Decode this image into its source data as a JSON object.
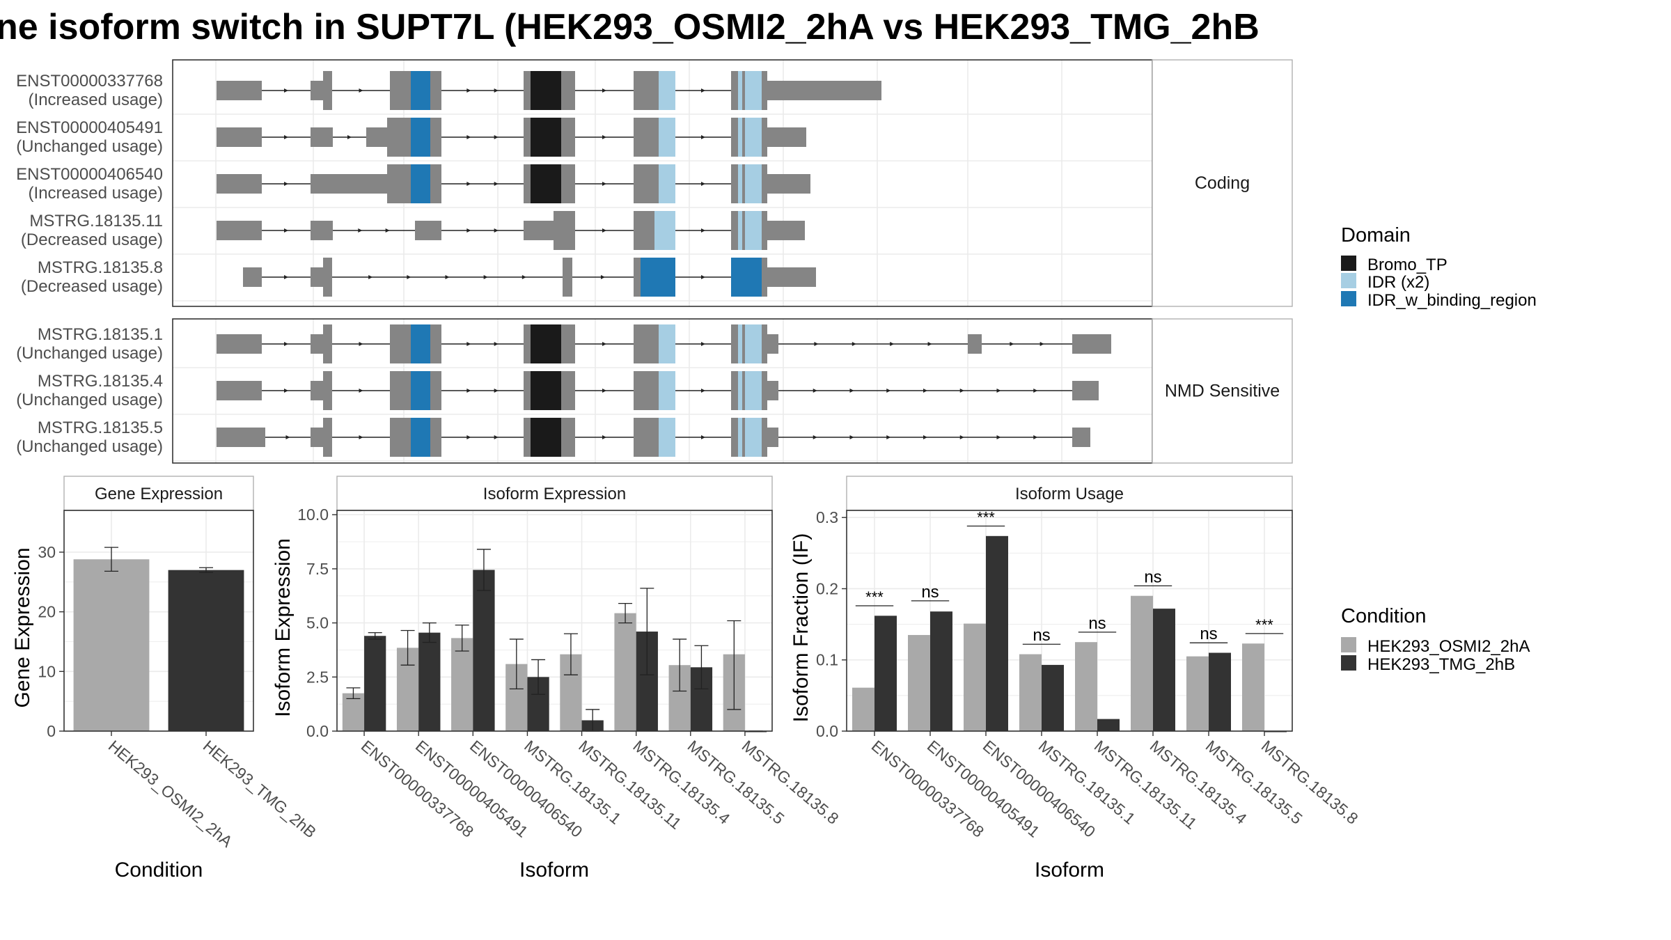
{
  "title": "ne isoform switch in SUPT7L (HEK293_OSMI2_2hA vs HEK293_TMG_2hB",
  "colors": {
    "exon": "#858585",
    "bromo": "#1a1a1a",
    "idr": "#a6cee3",
    "idr_binding": "#1f78b4",
    "cond_a": "#a9a9a9",
    "cond_b": "#333333",
    "panel_border": "#333333",
    "strip_border": "#b0b0b0",
    "grid": "#ebebeb"
  },
  "structure": {
    "facets": [
      {
        "label": "Coding",
        "isoforms": [
          {
            "id": "ENST00000337768",
            "usage": "(Increased usage)"
          },
          {
            "id": "ENST00000405491",
            "usage": "(Unchanged usage)"
          },
          {
            "id": "ENST00000406540",
            "usage": "(Increased usage)"
          },
          {
            "id": "MSTRG.18135.11",
            "usage": "(Decreased usage)"
          },
          {
            "id": "MSTRG.18135.8",
            "usage": "(Decreased usage)"
          }
        ]
      },
      {
        "label": "NMD Sensitive",
        "isoforms": [
          {
            "id": "MSTRG.18135.1",
            "usage": "(Unchanged usage)"
          },
          {
            "id": "MSTRG.18135.4",
            "usage": "(Unchanged usage)"
          },
          {
            "id": "MSTRG.18135.5",
            "usage": "(Unchanged usage)"
          }
        ]
      }
    ]
  },
  "legend_domain": {
    "title": "Domain",
    "items": [
      {
        "label": "Bromo_TP",
        "color": "#1a1a1a"
      },
      {
        "label": "IDR (x2)",
        "color": "#a6cee3"
      },
      {
        "label": "IDR_w_binding_region",
        "color": "#1f78b4"
      }
    ]
  },
  "legend_condition": {
    "title": "Condition",
    "items": [
      {
        "label": "HEK293_OSMI2_2hA",
        "color": "#a9a9a9"
      },
      {
        "label": "HEK293_TMG_2hB",
        "color": "#333333"
      }
    ]
  },
  "chart_data": [
    {
      "type": "bar",
      "title": "Gene Expression",
      "xlabel": "Condition",
      "ylabel": "Gene Expression",
      "ylim": [
        0,
        37
      ],
      "yticks": [
        0,
        10,
        20,
        30
      ],
      "categories": [
        "HEK293_OSMI2_2hA",
        "HEK293_TMG_2hB"
      ],
      "values": [
        28.8,
        27.0
      ],
      "error_low": [
        26.8,
        26.6
      ],
      "error_high": [
        30.8,
        27.4
      ]
    },
    {
      "type": "bar",
      "title": "Isoform Expression",
      "xlabel": "Isoform",
      "ylabel": "Isoform Expression",
      "ylim": [
        0,
        10.2
      ],
      "yticks": [
        "0.0",
        "2.5",
        "5.0",
        "7.5",
        "10.0"
      ],
      "categories": [
        "ENST00000337768",
        "ENST00000405491",
        "ENST00000406540",
        "MSTRG.18135.1",
        "MSTRG.18135.11",
        "MSTRG.18135.4",
        "MSTRG.18135.5",
        "MSTRG.18135.8"
      ],
      "series": [
        {
          "name": "HEK293_OSMI2_2hA",
          "values": [
            1.75,
            3.85,
            4.3,
            3.1,
            3.55,
            5.45,
            3.05,
            3.55
          ],
          "error_low": [
            1.5,
            3.05,
            3.7,
            1.95,
            2.6,
            5.0,
            1.85,
            1.0
          ],
          "error_high": [
            2.0,
            4.65,
            4.9,
            4.25,
            4.5,
            5.9,
            4.25,
            5.1
          ]
        },
        {
          "name": "HEK293_TMG_2hB",
          "values": [
            4.4,
            4.55,
            7.45,
            2.5,
            0.5,
            4.6,
            2.95,
            0.0
          ],
          "error_low": [
            4.25,
            4.1,
            6.5,
            1.7,
            0.0,
            2.6,
            1.95,
            0.0
          ],
          "error_high": [
            4.55,
            5.0,
            8.4,
            3.3,
            1.0,
            6.6,
            3.95,
            0.0
          ]
        }
      ]
    },
    {
      "type": "bar",
      "title": "Isoform Usage",
      "xlabel": "Isoform",
      "ylabel": "Isoform Fraction (IF)",
      "ylim": [
        0,
        0.31
      ],
      "yticks": [
        "0.0",
        "0.1",
        "0.2",
        "0.3"
      ],
      "categories": [
        "ENST00000337768",
        "ENST00000405491",
        "ENST00000406540",
        "MSTRG.18135.1",
        "MSTRG.18135.11",
        "MSTRG.18135.4",
        "MSTRG.18135.5",
        "MSTRG.18135.8"
      ],
      "series": [
        {
          "name": "HEK293_OSMI2_2hA",
          "values": [
            0.061,
            0.135,
            0.151,
            0.108,
            0.125,
            0.19,
            0.105,
            0.123
          ]
        },
        {
          "name": "HEK293_TMG_2hB",
          "values": [
            0.162,
            0.168,
            0.274,
            0.093,
            0.017,
            0.172,
            0.11,
            0.0
          ]
        }
      ],
      "significance": [
        "***",
        "ns",
        "***",
        "ns",
        "ns",
        "ns",
        "ns",
        "***"
      ],
      "significance_at": [
        0.176,
        0.183,
        0.288,
        0.122,
        0.139,
        0.204,
        0.124,
        0.137
      ]
    }
  ]
}
